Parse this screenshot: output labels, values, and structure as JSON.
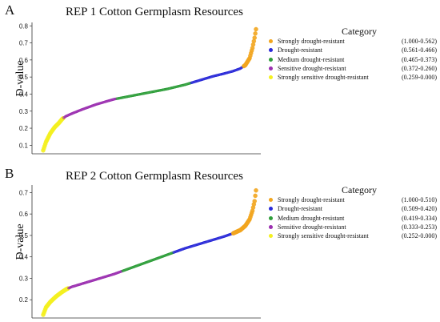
{
  "colors": {
    "strongly_resistant": "#F2A51E",
    "resistant": "#2A2AD8",
    "medium": "#2E9E3A",
    "sensitive": "#9B2FB0",
    "strongly_sensitive": "#F4F020"
  },
  "chart_data": [
    {
      "panel_letter": "A",
      "type": "scatter",
      "title": "REP 1 Cotton Germplasm Resources",
      "ylabel": "D-value",
      "xlabel": "",
      "ylim": [
        0.05,
        0.82
      ],
      "yticks": [
        "0.1",
        "0.2",
        "0.3",
        "0.4",
        "0.5",
        "0.6",
        "0.7",
        "0.8"
      ],
      "grid": false,
      "legend_placement": "right",
      "legend_title": "Category",
      "series": [
        {
          "name": "Strongly drought-resistant",
          "range": "(1.000-0.562)",
          "color_key": "strongly_resistant",
          "lower": 0.562
        },
        {
          "name": "Drought-resistant",
          "range": "(0.561-0.466)",
          "color_key": "resistant",
          "lower": 0.466
        },
        {
          "name": "Medium drought-resistant",
          "range": "(0.465-0.373)",
          "color_key": "medium",
          "lower": 0.373
        },
        {
          "name": "Sensitive drought-resistant",
          "range": "(0.372-0.260)",
          "color_key": "sensitive",
          "lower": 0.26
        },
        {
          "name": "Strongly sensitive drought-resistant",
          "range": "(0.259-0.000)",
          "color_key": "strongly_sensitive",
          "lower": 0.0
        }
      ],
      "curve": {
        "n_points": 300,
        "x": [
          0,
          4,
          10,
          16,
          22,
          27,
          32,
          40,
          55,
          75,
          100,
          125,
          150,
          175,
          200,
          220,
          240,
          255,
          268,
          278,
          285,
          291,
          295,
          298,
          300
        ],
        "y": [
          0.07,
          0.12,
          0.17,
          0.205,
          0.23,
          0.255,
          0.27,
          0.285,
          0.31,
          0.34,
          0.37,
          0.39,
          0.41,
          0.43,
          0.455,
          0.48,
          0.505,
          0.52,
          0.535,
          0.55,
          0.57,
          0.61,
          0.67,
          0.73,
          0.78
        ]
      }
    },
    {
      "panel_letter": "B",
      "type": "scatter",
      "title": "REP 2 Cotton Germplasm Resources",
      "ylabel": "D-value",
      "xlabel": "",
      "ylim": [
        0.115,
        0.735
      ],
      "yticks": [
        "0.2",
        "0.3",
        "0.4",
        "0.5",
        "0.6",
        "0.7"
      ],
      "grid": false,
      "legend_placement": "right",
      "legend_title": "Category",
      "series": [
        {
          "name": "Strongly drought-resistant",
          "range": "(1.000-0.510)",
          "color_key": "strongly_resistant",
          "lower": 0.51
        },
        {
          "name": "Drought-resistant",
          "range": "(0.509-0.420)",
          "color_key": "resistant",
          "lower": 0.42
        },
        {
          "name": "Medium drought-resistant",
          "range": "(0.419-0.334)",
          "color_key": "medium",
          "lower": 0.334
        },
        {
          "name": "Sensitive drought-resistant",
          "range": "(0.333-0.253)",
          "color_key": "sensitive",
          "lower": 0.253
        },
        {
          "name": "Strongly sensitive drought-resistant",
          "range": "(0.252-0.000)",
          "color_key": "strongly_sensitive",
          "lower": 0.0
        }
      ],
      "curve": {
        "n_points": 300,
        "x": [
          0,
          4,
          10,
          18,
          26,
          33,
          40,
          55,
          75,
          100,
          125,
          150,
          175,
          200,
          220,
          240,
          255,
          268,
          278,
          285,
          291,
          295,
          298,
          300
        ],
        "y": [
          0.13,
          0.165,
          0.19,
          0.215,
          0.235,
          0.25,
          0.26,
          0.275,
          0.295,
          0.32,
          0.35,
          0.38,
          0.41,
          0.44,
          0.46,
          0.48,
          0.495,
          0.51,
          0.525,
          0.545,
          0.575,
          0.615,
          0.66,
          0.71
        ]
      }
    }
  ]
}
